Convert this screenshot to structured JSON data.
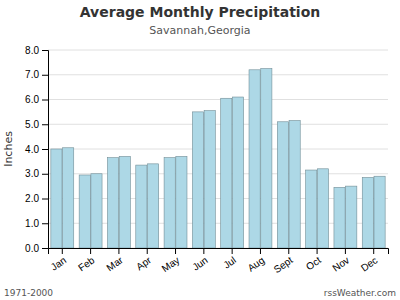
{
  "chart_data": {
    "type": "bar",
    "title": "Average Monthly Precipitation",
    "subtitle": "Savannah,Georgia",
    "y_label": "Inches",
    "annotations": [
      "1971-2000",
      "rssWeather.com"
    ],
    "categories": [
      "Jan",
      "Feb",
      "Mar",
      "Apr",
      "May",
      "Jun",
      "Jul",
      "Aug",
      "Sept",
      "Oct",
      "Nov",
      "Dec"
    ],
    "series": [
      {
        "color": "#add8e6",
        "values": [
          4.0,
          2.95,
          3.65,
          3.35,
          3.65,
          5.5,
          6.05,
          7.2,
          5.1,
          3.15,
          2.45,
          2.85
        ]
      },
      {
        "color": "#add8e6",
        "values": [
          4.05,
          3.0,
          3.7,
          3.4,
          3.7,
          5.55,
          6.1,
          7.25,
          5.15,
          3.2,
          2.5,
          2.9
        ]
      }
    ],
    "ylim": [
      0.0,
      8.0
    ],
    "yticks": [
      {
        "value": 0.0,
        "label": "0.0"
      },
      {
        "value": 1.0,
        "label": "1.0"
      },
      {
        "value": 2.0,
        "label": "2.0"
      },
      {
        "value": 3.0,
        "label": "3.0"
      },
      {
        "value": 4.0,
        "label": "4.0"
      },
      {
        "value": 5.0,
        "label": "5.0"
      },
      {
        "value": 6.0,
        "label": "6.0"
      },
      {
        "value": 7.0,
        "label": "7.0"
      },
      {
        "value": 8.0,
        "label": "8.0"
      }
    ],
    "grid": true
  }
}
